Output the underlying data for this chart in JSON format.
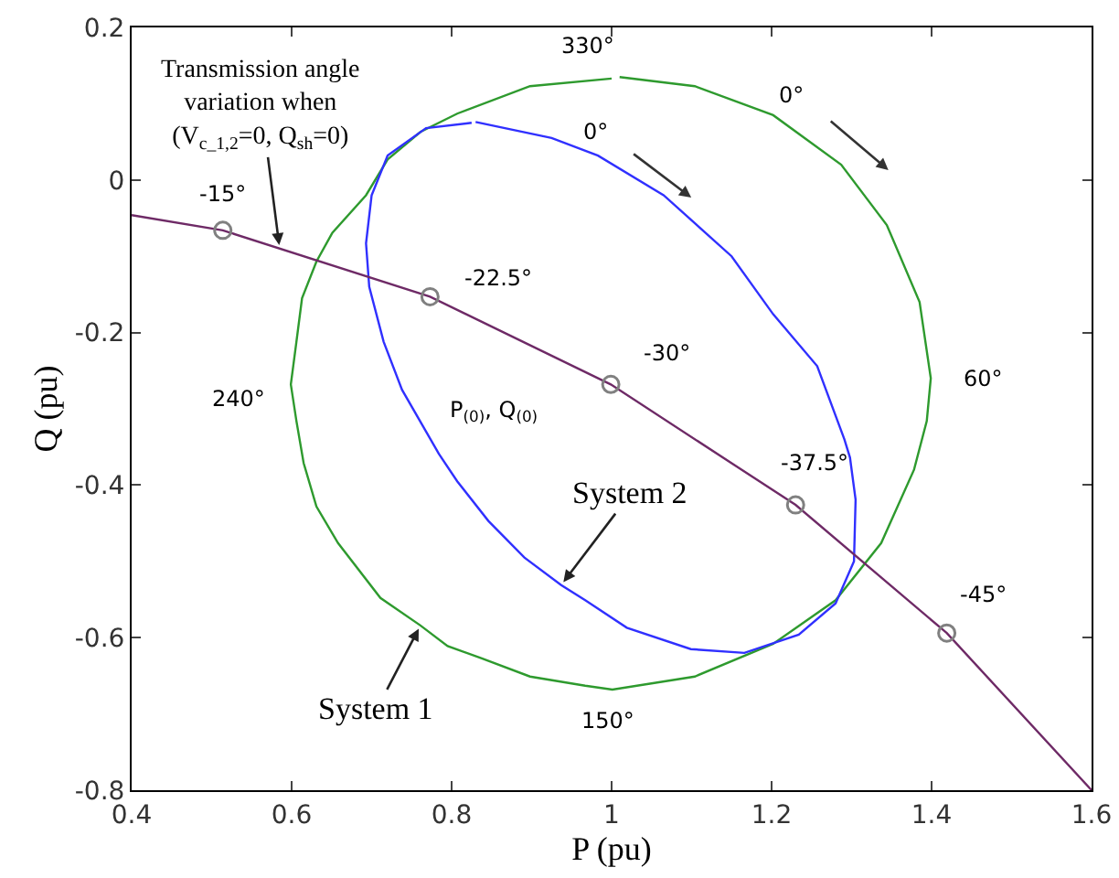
{
  "chart_data": {
    "type": "line",
    "xlabel": "P (pu)",
    "ylabel": "Q (pu)",
    "xlim": [
      0.4,
      1.6
    ],
    "xticks": [
      0.4,
      0.6,
      0.8,
      1,
      1.2,
      1.4,
      1.6
    ],
    "ylim": [
      -0.8,
      0.2
    ],
    "yticks": [
      0.2,
      0,
      -0.2,
      -0.4,
      -0.6,
      -0.8
    ],
    "grid": false,
    "line_style": "solid",
    "series": [
      {
        "color": "#2e9a2e",
        "marker": "none",
        "x": [
          1.0,
          0.898,
          0.807,
          0.761,
          0.72,
          0.693,
          0.651,
          0.631,
          0.613,
          0.606,
          0.599,
          0.606,
          0.615,
          0.631,
          0.658,
          0.711,
          0.761,
          0.795,
          0.837,
          0.898,
          0.967,
          1.001,
          1.104,
          1.202,
          1.28,
          1.337,
          1.378,
          1.394,
          1.399,
          1.385,
          1.344,
          1.287,
          1.202,
          1.104,
          1.01
        ],
        "values": [
          0.133,
          0.123,
          0.087,
          0.063,
          0.027,
          -0.02,
          -0.069,
          -0.107,
          -0.155,
          -0.212,
          -0.268,
          -0.316,
          -0.371,
          -0.428,
          -0.476,
          -0.548,
          -0.584,
          -0.611,
          -0.627,
          -0.651,
          -0.663,
          -0.668,
          -0.651,
          -0.608,
          -0.551,
          -0.476,
          -0.38,
          -0.316,
          -0.26,
          -0.16,
          -0.059,
          0.02,
          0.085,
          0.123,
          0.135
        ]
      },
      {
        "color": "#3030ff",
        "marker": "none",
        "x": [
          0.825,
          0.768,
          0.72,
          0.7,
          0.693,
          0.697,
          0.715,
          0.738,
          0.784,
          0.807,
          0.846,
          0.891,
          0.937,
          0.967,
          1.019,
          1.099,
          1.166,
          1.234,
          1.28,
          1.303,
          1.305,
          1.298,
          1.291,
          1.257,
          1.202,
          1.15,
          1.065,
          0.983,
          0.925,
          0.83
        ],
        "values": [
          0.075,
          0.068,
          0.032,
          -0.02,
          -0.083,
          -0.14,
          -0.212,
          -0.275,
          -0.359,
          -0.395,
          -0.447,
          -0.495,
          -0.531,
          -0.551,
          -0.587,
          -0.615,
          -0.62,
          -0.596,
          -0.555,
          -0.5,
          -0.419,
          -0.364,
          -0.34,
          -0.244,
          -0.176,
          -0.1,
          -0.02,
          0.032,
          0.055,
          0.076
        ]
      },
      {
        "color": "#6e2a66",
        "marker": "none",
        "x": [
          0.4,
          0.514,
          0.773,
          0.999,
          1.23,
          1.419,
          1.6
        ],
        "values": [
          -0.046,
          -0.066,
          -0.153,
          -0.268,
          -0.426,
          -0.594,
          -0.8
        ]
      },
      {
        "type": "scatter",
        "color": "#808080",
        "marker": "circle",
        "x": [
          0.514,
          0.773,
          0.999,
          1.23,
          1.419
        ],
        "values": [
          -0.066,
          -0.153,
          -0.268,
          -0.426,
          -0.594
        ]
      }
    ],
    "annotations": [
      {
        "text": "Transmission angle\nvariation when\n(V$_{c_1,2}$=0, Q$_{sh}$=0)",
        "x": 0.585,
        "y": -0.09
      },
      {
        "text": "System 2",
        "x": 0.937,
        "y": -0.531
      },
      {
        "text": "System 1",
        "x": 0.761,
        "y": -0.584
      },
      {
        "text": "-15°",
        "x": 0.514,
        "y": -0.066
      },
      {
        "text": "-22.5°",
        "x": 0.773,
        "y": -0.153
      },
      {
        "text": "-30°",
        "x": 0.999,
        "y": -0.268
      },
      {
        "text": "-37.5°",
        "x": 1.23,
        "y": -0.426
      },
      {
        "text": "-45°",
        "x": 1.419,
        "y": -0.594
      },
      "P$_{(0)}$, Q$_{(0)}$",
      {
        "text": "330°",
        "x": 1.0,
        "y": 0.133
      },
      {
        "text": "0°",
        "x": 1.202,
        "y": 0.085
      },
      {
        "text": "0°",
        "x": 0.983,
        "y": 0.032
      },
      {
        "text": "240°",
        "x": 0.599,
        "y": -0.268
      },
      {
        "text": "60°",
        "x": 1.399,
        "y": -0.26
      },
      {
        "text": "150°",
        "x": 1.0,
        "y": -0.668
      }
    ]
  }
}
